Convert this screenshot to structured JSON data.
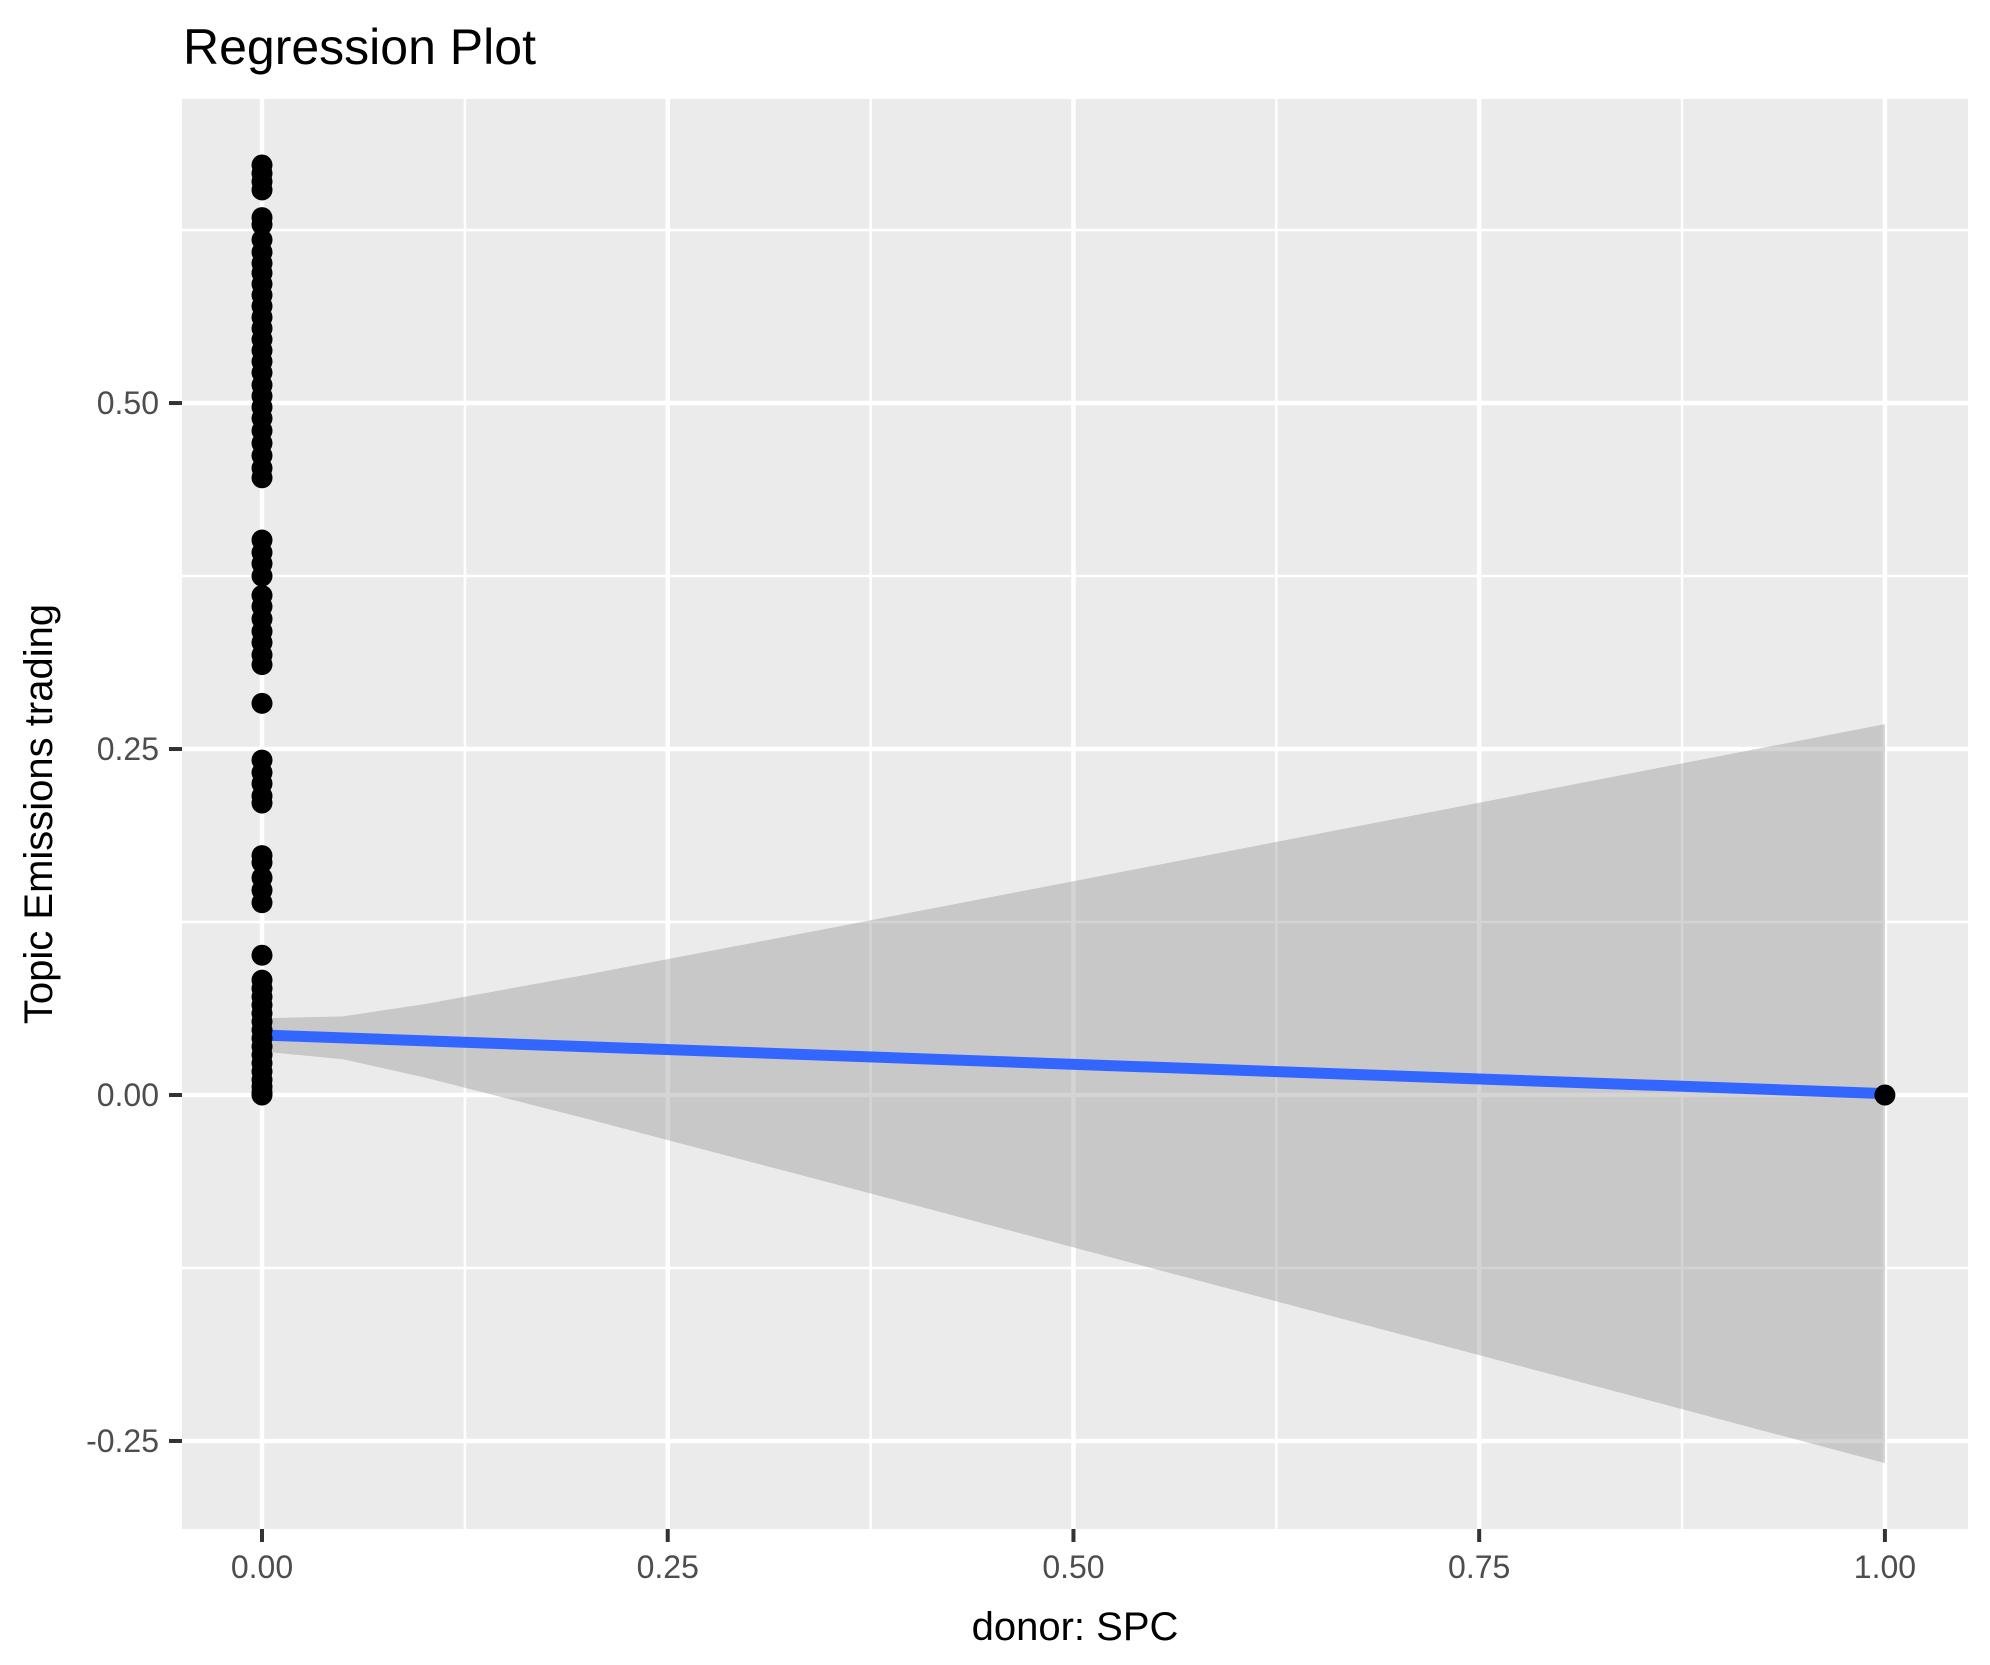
{
  "chart_data": {
    "type": "scatter",
    "title": "Regression Plot",
    "xlabel": "donor: SPC",
    "ylabel": "Topic Emissions trading",
    "xlim": [
      -0.0493,
      1.0512
    ],
    "ylim": [
      -0.3136,
      0.7197
    ],
    "grid": "white major and minor gridlines on gray panel (ggplot2 style)",
    "legend": "none",
    "x_ticks": {
      "values": [
        0,
        0.25,
        0.5,
        0.75,
        1.0
      ],
      "labels": [
        "0.00",
        "0.25",
        "0.50",
        "0.75",
        "1.00"
      ]
    },
    "y_ticks": {
      "values": [
        0.5,
        0.25,
        0.0,
        -0.25
      ],
      "labels": [
        "0.50",
        "0.25",
        "0.00",
        "-0.25"
      ]
    },
    "x_minor_gridlines": [
      0.125,
      0.375,
      0.625,
      0.875
    ],
    "y_minor_gridlines": [
      0.625,
      0.375,
      0.125,
      -0.125
    ],
    "points": [
      [
        0,
        0.672
      ],
      [
        0,
        0.666
      ],
      [
        0,
        0.66
      ],
      [
        0,
        0.654
      ],
      [
        0,
        0.634
      ],
      [
        0,
        0.629
      ],
      [
        0,
        0.618
      ],
      [
        0,
        0.609
      ],
      [
        0,
        0.601
      ],
      [
        0,
        0.594
      ],
      [
        0,
        0.586
      ],
      [
        0,
        0.578
      ],
      [
        0,
        0.57
      ],
      [
        0,
        0.562
      ],
      [
        0,
        0.554
      ],
      [
        0,
        0.546
      ],
      [
        0,
        0.538
      ],
      [
        0,
        0.53
      ],
      [
        0,
        0.522
      ],
      [
        0,
        0.513
      ],
      [
        0,
        0.505
      ],
      [
        0,
        0.497
      ],
      [
        0,
        0.489
      ],
      [
        0,
        0.48
      ],
      [
        0,
        0.471
      ],
      [
        0,
        0.462
      ],
      [
        0,
        0.453
      ],
      [
        0,
        0.446
      ],
      [
        0,
        0.401
      ],
      [
        0,
        0.392
      ],
      [
        0,
        0.384
      ],
      [
        0,
        0.375
      ],
      [
        0,
        0.361
      ],
      [
        0,
        0.353
      ],
      [
        0,
        0.344
      ],
      [
        0,
        0.335
      ],
      [
        0,
        0.327
      ],
      [
        0,
        0.318
      ],
      [
        0,
        0.311
      ],
      [
        0,
        0.283
      ],
      [
        0,
        0.242
      ],
      [
        0,
        0.233
      ],
      [
        0,
        0.225
      ],
      [
        0,
        0.216
      ],
      [
        0,
        0.211
      ],
      [
        0,
        0.173
      ],
      [
        0,
        0.168
      ],
      [
        0,
        0.157
      ],
      [
        0,
        0.148
      ],
      [
        0,
        0.139
      ],
      [
        0,
        0.101
      ],
      [
        0,
        0.083
      ],
      [
        0,
        0.077
      ],
      [
        0,
        0.071
      ],
      [
        0,
        0.065
      ],
      [
        0,
        0.059
      ],
      [
        0,
        0.053
      ],
      [
        0,
        0.047
      ],
      [
        0,
        0.041
      ],
      [
        0,
        0.035
      ],
      [
        0,
        0.029
      ],
      [
        0,
        0.023
      ],
      [
        0,
        0.017
      ],
      [
        0,
        0.011
      ],
      [
        0,
        0.006
      ],
      [
        0,
        0.002
      ],
      [
        0,
        0.0
      ],
      [
        1,
        0.0
      ]
    ],
    "regression_line": {
      "x": [
        0,
        1
      ],
      "y": [
        0.0434,
        0.001
      ]
    },
    "confidence_band": {
      "x": [
        0,
        0.05,
        0.1,
        0.2,
        0.35,
        0.5,
        0.75,
        1.0
      ],
      "upper": [
        0.0555,
        0.0568,
        0.0657,
        0.087,
        0.1206,
        0.1545,
        0.2112,
        0.268
      ],
      "lower": [
        0.0314,
        0.0258,
        0.0127,
        -0.0172,
        -0.0634,
        -0.1101,
        -0.188,
        -0.266
      ]
    }
  },
  "colors": {
    "panel_background": "#EBEBEB",
    "gridline": "#FFFFFF",
    "point": "#000000",
    "regression_line": "#3366FF",
    "confidence_band": "rgba(153,153,153,0.42)",
    "tick_label": "#4D4D4D",
    "tick_mark": "#333333",
    "title_text": "#000000"
  }
}
